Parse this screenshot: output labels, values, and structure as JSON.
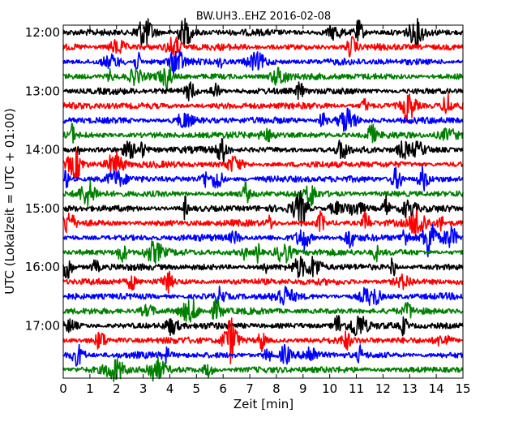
{
  "chart_data": {
    "type": "line",
    "title": "BW.UH3..EHZ 2016-02-08",
    "xlabel": "Zeit  [min]",
    "ylabel": "UTC (Lokalzeit = UTC + 01:00)",
    "xlim": [
      0,
      15
    ],
    "x_ticks": [
      "0",
      "1",
      "2",
      "3",
      "4",
      "5",
      "6",
      "7",
      "8",
      "9",
      "10",
      "11",
      "12",
      "13",
      "14",
      "15"
    ],
    "y_ticks": [
      "12:00",
      "13:00",
      "14:00",
      "15:00",
      "16:00",
      "17:00"
    ],
    "trace_interval_minutes": 15,
    "first_trace_time": "12:00",
    "trace_count": 24,
    "colors": [
      "#000000",
      "#ff0000",
      "#0000ff",
      "#008000"
    ],
    "grid": false
  }
}
